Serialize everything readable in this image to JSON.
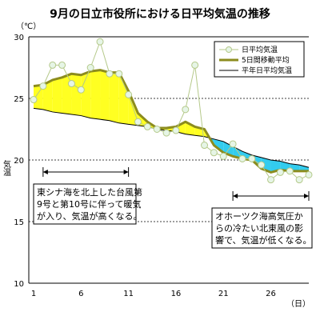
{
  "chart_data": {
    "type": "line",
    "title": "9月の日立市役所における日平均気温の推移",
    "ylabel": "気温",
    "yunit": "（℃）",
    "xunit": "（日）",
    "ylim": [
      10,
      30
    ],
    "xlim": [
      1,
      30
    ],
    "yticks": [
      10,
      15,
      20,
      25,
      30
    ],
    "xticks": [
      1,
      6,
      11,
      16,
      21,
      26
    ],
    "x": [
      1,
      2,
      3,
      4,
      5,
      6,
      7,
      8,
      9,
      10,
      11,
      12,
      13,
      14,
      15,
      16,
      17,
      18,
      19,
      20,
      21,
      22,
      23,
      24,
      25,
      26,
      27,
      28,
      29,
      30
    ],
    "series": [
      {
        "name": "日平均気温",
        "role": "daily",
        "color": "#b5c98a",
        "marker_fill": "#e6f5e6",
        "values": [
          24.9,
          26.0,
          27.7,
          27.7,
          26.2,
          25.7,
          27.5,
          29.6,
          27.0,
          27.0,
          25.3,
          23.1,
          22.7,
          22.5,
          22.2,
          22.4,
          24.1,
          27.7,
          21.2,
          20.6,
          20.3,
          21.3,
          20.1,
          20.1,
          19.6,
          18.4,
          19.0,
          19.1,
          18.4,
          18.8
        ]
      },
      {
        "name": "5日間移動平均",
        "role": "moving_average",
        "color": "#8c8c1e",
        "values": [
          26.0,
          26.1,
          26.5,
          26.7,
          27.0,
          26.9,
          27.2,
          27.3,
          27.1,
          27.1,
          25.6,
          23.8,
          23.1,
          22.6,
          22.6,
          22.7,
          23.1,
          22.7,
          22.5,
          21.2,
          20.6,
          20.3,
          20.1,
          20.0,
          19.3,
          19.0,
          19.2,
          19.1,
          19.1,
          19.1
        ]
      },
      {
        "name": "平年日平均気温",
        "role": "normal",
        "color": "#000000",
        "values": [
          24.2,
          24.1,
          23.9,
          23.8,
          23.7,
          23.6,
          23.4,
          23.3,
          23.2,
          23.0,
          22.9,
          22.8,
          22.7,
          22.5,
          22.4,
          22.3,
          22.1,
          22.0,
          21.9,
          21.7,
          21.5,
          21.1,
          20.7,
          20.4,
          20.2,
          20.0,
          19.9,
          19.7,
          19.6,
          19.4
        ]
      }
    ],
    "fills": {
      "above_color": "#ffff22",
      "below_color": "#33ccee"
    },
    "gridlines_dashed": true,
    "legend_position": "top-right",
    "annotations": [
      {
        "lines": [
          "東シナ海を北上した台風第",
          "9号と第10号に伴って暖気",
          "が入り、気温が高くなる。"
        ],
        "span": [
          2,
          11
        ]
      },
      {
        "lines": [
          "オホーツク海高気圧か",
          "らの冷たい北東風の影",
          "響で、気温が低くなる。"
        ],
        "span": [
          22,
          30
        ]
      }
    ]
  }
}
